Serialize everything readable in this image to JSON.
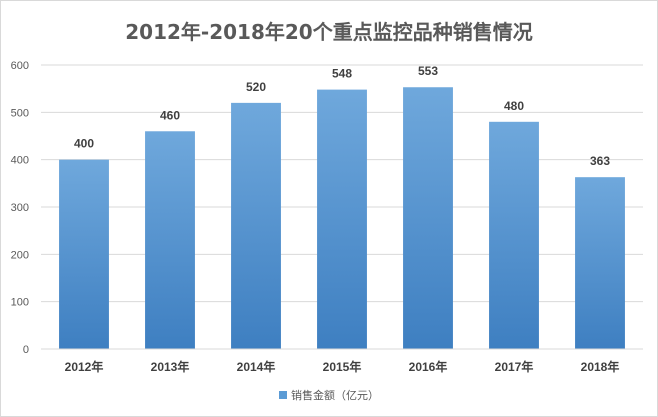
{
  "chart_data": {
    "type": "bar",
    "title": "2012年-2018年20个重点监控品种销售情况",
    "categories": [
      "2012年",
      "2013年",
      "2014年",
      "2015年",
      "2016年",
      "2017年",
      "2018年"
    ],
    "series": [
      {
        "name": "销售金额（亿元）",
        "values": [
          400,
          460,
          520,
          548,
          553,
          480,
          363
        ]
      }
    ],
    "xlabel": "",
    "ylabel": "",
    "ylim": [
      0,
      600
    ],
    "yticks": [
      0,
      100,
      200,
      300,
      400,
      500,
      600
    ],
    "grid": true,
    "legend_position": "bottom",
    "bar_color": "#5b9bd5",
    "bar_color_light": "#6fa8dc",
    "bar_color_dark": "#3e7fc1"
  }
}
